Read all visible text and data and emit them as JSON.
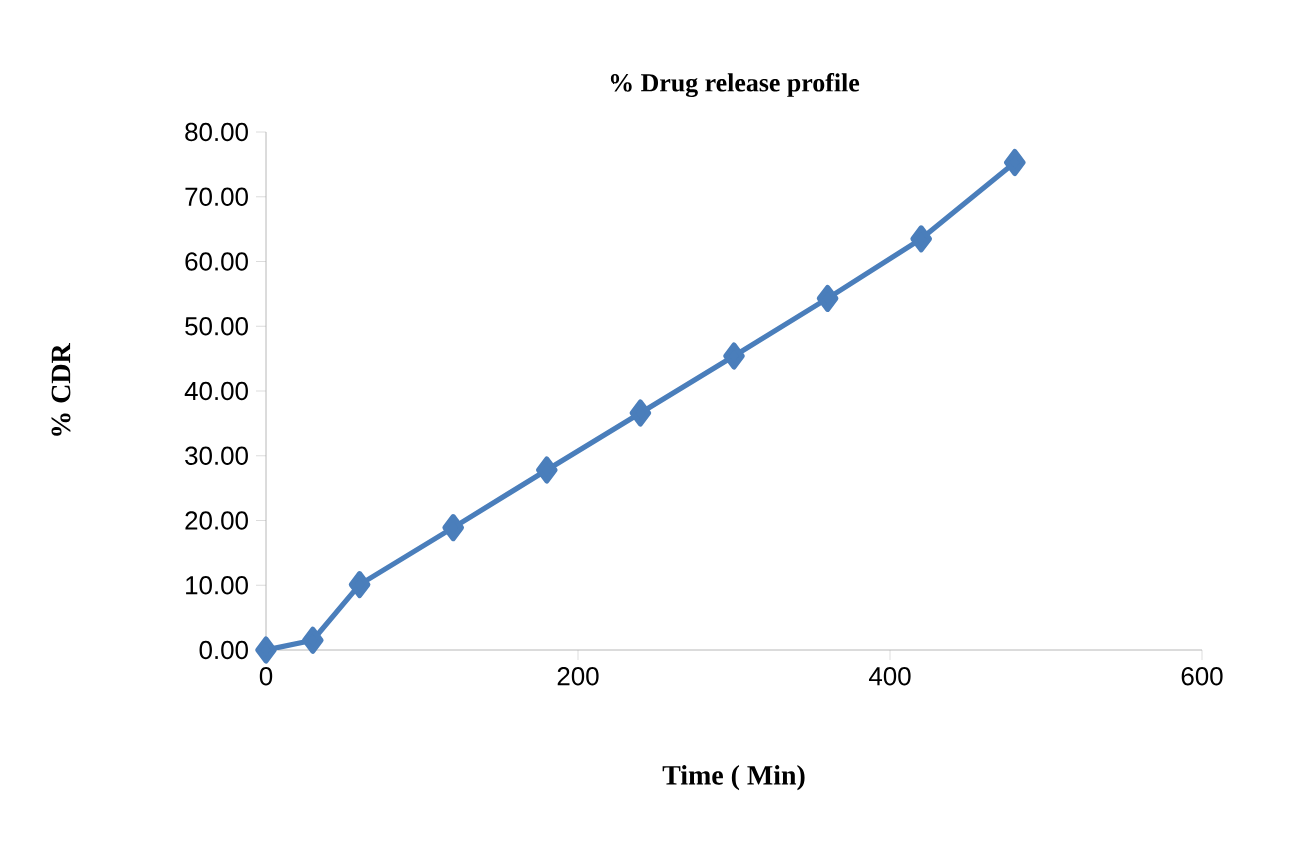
{
  "chart_data": {
    "type": "line",
    "title": "% Drug release profile",
    "xlabel": "Time ( Min)",
    "ylabel": "% CDR",
    "x": [
      0,
      30,
      60,
      120,
      180,
      240,
      300,
      360,
      420,
      480
    ],
    "series": [
      {
        "color": "#4a7ebb",
        "values": [
          0,
          1.5,
          10.1,
          18.9,
          27.8,
          36.6,
          45.4,
          54.3,
          63.5,
          75.3
        ]
      }
    ],
    "xlim": [
      0,
      600
    ],
    "xticks": [
      0,
      200,
      400,
      600
    ],
    "ylim": [
      0,
      80
    ],
    "yticks": [
      {
        "value": 0,
        "label": "0.00"
      },
      {
        "value": 10,
        "label": "10.00"
      },
      {
        "value": 20,
        "label": "20.00"
      },
      {
        "value": 30,
        "label": "30.00"
      },
      {
        "value": 40,
        "label": "40.00"
      },
      {
        "value": 50,
        "label": "50.00"
      },
      {
        "value": 60,
        "label": "60.00"
      },
      {
        "value": 70,
        "label": "70.00"
      },
      {
        "value": 80,
        "label": "80.00"
      }
    ],
    "grid": false,
    "marker": "diamond",
    "line_style": "solid"
  }
}
